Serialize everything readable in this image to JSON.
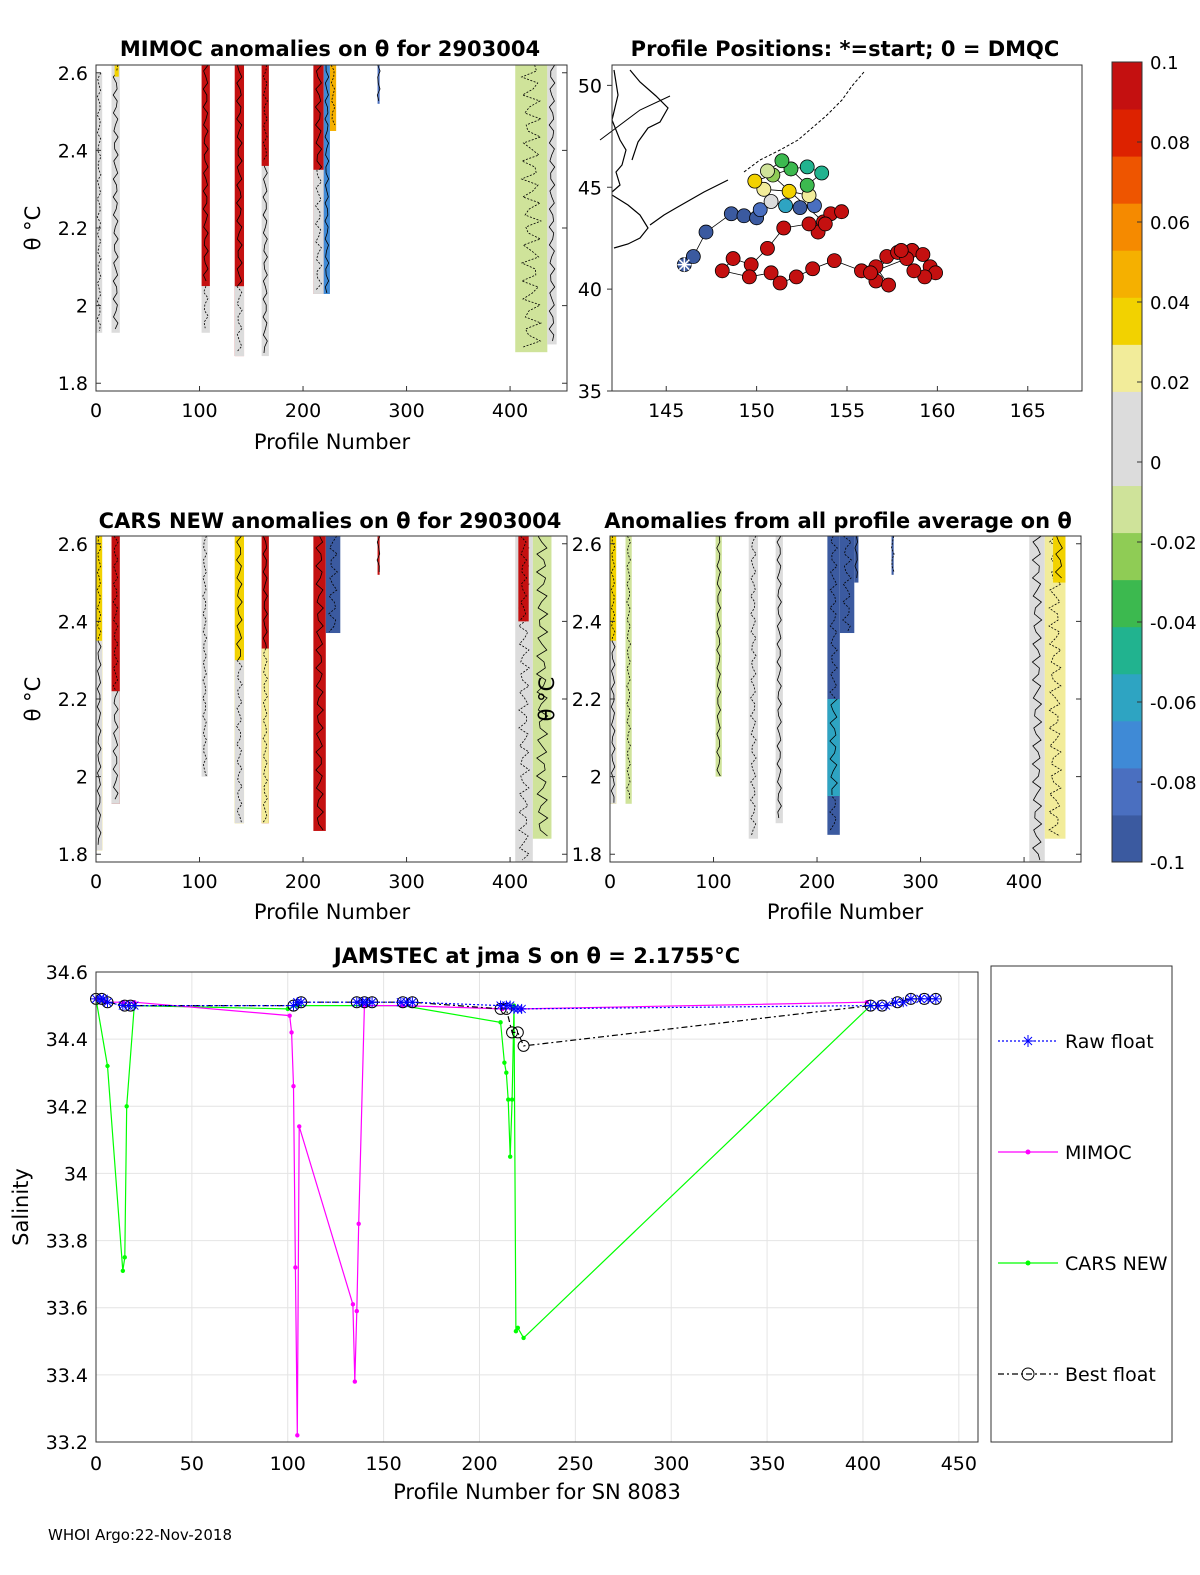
{
  "footer": "WHOI Argo:22-Nov-2018",
  "colorbar": {
    "min": -0.1,
    "max": 0.1,
    "tick_values": [
      0.1,
      0.08,
      0.06,
      0.04,
      0.02,
      0,
      -0.02,
      -0.04,
      -0.06,
      -0.08,
      -0.1
    ],
    "tick_labels": [
      "0.1",
      "0.08",
      "0.06",
      "0.04",
      "0.02",
      "0",
      "-0.02",
      "-0.04",
      "-0.06",
      "-0.08",
      "-0.1"
    ],
    "colors": [
      "#3b5aa0",
      "#4a6fc0",
      "#3f8ad6",
      "#2ea4c2",
      "#21b38f",
      "#3cb94f",
      "#8fcc55",
      "#cfe39a",
      "#dcdcdc",
      "#dcdcdc",
      "#f2ec9a",
      "#f2d200",
      "#f5b000",
      "#f58a00",
      "#ee5500",
      "#dd2200",
      "#c41010"
    ]
  },
  "chart_data": [
    {
      "id": "mimoc",
      "type": "heatmap",
      "title": "MIMOC anomalies on θ  for 2903004",
      "xlabel": "Profile Number",
      "ylabel": "θ °C",
      "xlim": [
        0,
        455
      ],
      "ylim": [
        1.78,
        2.62
      ],
      "xticks": [
        0,
        100,
        200,
        300,
        400
      ],
      "yticks": [
        1.8,
        2,
        2.2,
        2.4,
        2.6
      ],
      "ytick_labels": [
        "1.8",
        "2",
        "2.2",
        "2.4",
        "2.6"
      ],
      "columns": [
        {
          "x0": 0,
          "x1": 6,
          "y0": 1.93,
          "y1": 2.6,
          "v": 0.01
        },
        {
          "x0": 15,
          "x1": 23,
          "y0": 1.93,
          "y1": 2.62,
          "v": 0.01
        },
        {
          "x0": 18,
          "x1": 22,
          "y0": 2.59,
          "y1": 2.62,
          "v": 0.04
        },
        {
          "x0": 102,
          "x1": 110,
          "y0": 2.05,
          "y1": 2.62,
          "v": 0.1
        },
        {
          "x0": 102,
          "x1": 110,
          "y0": 1.93,
          "y1": 2.05,
          "v": 0.0
        },
        {
          "x0": 134,
          "x1": 143,
          "y0": 1.87,
          "y1": 2.62,
          "v": 0.1
        },
        {
          "x0": 134,
          "x1": 143,
          "y0": 1.87,
          "y1": 2.05,
          "v": 0.0
        },
        {
          "x0": 160,
          "x1": 167,
          "y0": 1.87,
          "y1": 2.62,
          "v": 0.0
        },
        {
          "x0": 160,
          "x1": 167,
          "y0": 2.36,
          "y1": 2.62,
          "v": 0.1
        },
        {
          "x0": 210,
          "x1": 220,
          "y0": 2.03,
          "y1": 2.62,
          "v": 0.1
        },
        {
          "x0": 210,
          "x1": 220,
          "y0": 2.03,
          "y1": 2.35,
          "v": 0.0
        },
        {
          "x0": 220,
          "x1": 226,
          "y0": 2.03,
          "y1": 2.62,
          "v": -0.07
        },
        {
          "x0": 226,
          "x1": 232,
          "y0": 2.45,
          "y1": 2.62,
          "v": 0.05
        },
        {
          "x0": 272,
          "x1": 274,
          "y0": 2.52,
          "y1": 2.62,
          "v": -0.08
        },
        {
          "x0": 405,
          "x1": 436,
          "y0": 1.88,
          "y1": 2.62,
          "v": -0.015
        },
        {
          "x0": 436,
          "x1": 445,
          "y0": 1.9,
          "y1": 2.62,
          "v": 0.0
        }
      ]
    },
    {
      "id": "map",
      "type": "scatter",
      "title": "Profile Positions: *=start; 0 = DMQC",
      "xlim": [
        142,
        168
      ],
      "ylim": [
        35,
        51
      ],
      "xticks": [
        145,
        150,
        155,
        160,
        165
      ],
      "yticks": [
        35,
        40,
        45,
        50
      ],
      "start": [
        146.0,
        41.2
      ],
      "points": [
        [
          146.0,
          41.2,
          -0.09
        ],
        [
          146.5,
          41.6,
          -0.09
        ],
        [
          147.2,
          42.8,
          -0.1
        ],
        [
          148.6,
          43.7,
          -0.1
        ],
        [
          149.3,
          43.6,
          -0.1
        ],
        [
          150.0,
          43.5,
          -0.1
        ],
        [
          150.2,
          43.9,
          -0.08
        ],
        [
          150.8,
          44.3,
          0.0
        ],
        [
          151.6,
          44.1,
          -0.06
        ],
        [
          152.4,
          44.0,
          -0.1
        ],
        [
          153.2,
          44.1,
          -0.08
        ],
        [
          152.9,
          44.6,
          0.02
        ],
        [
          151.8,
          44.8,
          0.03
        ],
        [
          150.4,
          44.9,
          0.02
        ],
        [
          149.9,
          45.3,
          0.03
        ],
        [
          150.9,
          45.6,
          -0.02
        ],
        [
          151.9,
          45.9,
          -0.03
        ],
        [
          152.8,
          46.0,
          -0.05
        ],
        [
          153.6,
          45.7,
          -0.05
        ],
        [
          152.8,
          45.1,
          -0.04
        ],
        [
          151.4,
          46.3,
          -0.03
        ],
        [
          150.6,
          45.8,
          -0.01
        ],
        [
          153.7,
          43.3,
          0.1
        ],
        [
          154.1,
          43.7,
          0.1
        ],
        [
          153.4,
          42.8,
          0.1
        ],
        [
          154.7,
          43.8,
          0.1
        ],
        [
          153.8,
          43.2,
          0.1
        ],
        [
          152.9,
          43.2,
          0.1
        ],
        [
          151.5,
          43.0,
          0.1
        ],
        [
          150.6,
          42.0,
          0.1
        ],
        [
          149.7,
          41.2,
          0.1
        ],
        [
          148.7,
          41.5,
          0.1
        ],
        [
          148.1,
          40.9,
          0.1
        ],
        [
          149.6,
          40.6,
          0.1
        ],
        [
          150.8,
          40.8,
          0.1
        ],
        [
          151.3,
          40.3,
          0.1
        ],
        [
          152.2,
          40.6,
          0.1
        ],
        [
          153.1,
          41.0,
          0.1
        ],
        [
          154.3,
          41.4,
          0.1
        ],
        [
          155.8,
          40.9,
          0.1
        ],
        [
          156.6,
          40.4,
          0.1
        ],
        [
          157.3,
          40.2,
          0.1
        ],
        [
          156.6,
          41.1,
          0.1
        ],
        [
          157.2,
          41.6,
          0.1
        ],
        [
          157.8,
          41.8,
          0.1
        ],
        [
          158.6,
          41.9,
          0.1
        ],
        [
          159.2,
          41.7,
          0.1
        ],
        [
          159.6,
          41.1,
          0.1
        ],
        [
          159.9,
          40.8,
          0.1
        ],
        [
          159.3,
          40.6,
          0.1
        ],
        [
          158.7,
          40.9,
          0.1
        ],
        [
          158.3,
          41.5,
          0.1
        ],
        [
          156.3,
          40.8,
          0.1
        ],
        [
          158.0,
          41.9,
          0.1
        ]
      ]
    },
    {
      "id": "cars",
      "type": "heatmap",
      "title": "CARS NEW anomalies on θ for 2903004",
      "xlabel": "Profile Number",
      "ylabel": "θ °C",
      "xlim": [
        0,
        455
      ],
      "ylim": [
        1.78,
        2.62
      ],
      "xticks": [
        0,
        100,
        200,
        300,
        400
      ],
      "yticks": [
        1.8,
        2,
        2.2,
        2.4,
        2.6
      ],
      "ytick_labels": [
        "1.8",
        "2",
        "2.2",
        "2.4",
        "2.6"
      ],
      "columns": [
        {
          "x0": 0,
          "x1": 6,
          "y0": 1.81,
          "y1": 2.62,
          "v": 0.035
        },
        {
          "x0": 0,
          "x1": 6,
          "y0": 1.81,
          "y1": 2.35,
          "v": 0.0
        },
        {
          "x0": 15,
          "x1": 23,
          "y0": 1.93,
          "y1": 2.62,
          "v": 0.1
        },
        {
          "x0": 15,
          "x1": 23,
          "y0": 1.93,
          "y1": 2.22,
          "v": 0.0
        },
        {
          "x0": 102,
          "x1": 108,
          "y0": 2.0,
          "y1": 2.62,
          "v": 0.0
        },
        {
          "x0": 134,
          "x1": 143,
          "y0": 1.88,
          "y1": 2.62,
          "v": 0.03
        },
        {
          "x0": 134,
          "x1": 143,
          "y0": 1.88,
          "y1": 2.3,
          "v": 0.0
        },
        {
          "x0": 160,
          "x1": 167,
          "y0": 1.88,
          "y1": 2.62,
          "v": 0.1
        },
        {
          "x0": 160,
          "x1": 167,
          "y0": 1.88,
          "y1": 2.33,
          "v": 0.025
        },
        {
          "x0": 210,
          "x1": 222,
          "y0": 1.86,
          "y1": 2.62,
          "v": 0.1
        },
        {
          "x0": 222,
          "x1": 236,
          "y0": 2.37,
          "y1": 2.62,
          "v": -0.1
        },
        {
          "x0": 272,
          "x1": 274,
          "y0": 2.52,
          "y1": 2.62,
          "v": 0.1
        },
        {
          "x0": 405,
          "x1": 422,
          "y0": 1.78,
          "y1": 2.62,
          "v": 0.0
        },
        {
          "x0": 422,
          "x1": 440,
          "y0": 1.84,
          "y1": 2.62,
          "v": -0.01
        },
        {
          "x0": 408,
          "x1": 418,
          "y0": 2.4,
          "y1": 2.62,
          "v": 0.1
        }
      ]
    },
    {
      "id": "allavg",
      "type": "heatmap",
      "title": "Anomalies from all profile average on θ",
      "xlabel": "Profile Number",
      "ylabel": "θ °C",
      "xlim": [
        0,
        455
      ],
      "ylim": [
        1.78,
        2.62
      ],
      "xticks": [
        0,
        100,
        200,
        300,
        400
      ],
      "yticks": [
        1.8,
        2,
        2.2,
        2.4,
        2.6
      ],
      "ytick_labels": [
        "1.8",
        "2",
        "2.2",
        "2.4",
        "2.6"
      ],
      "columns": [
        {
          "x0": 0,
          "x1": 6,
          "y0": 1.93,
          "y1": 2.62,
          "v": 0.035
        },
        {
          "x0": 0,
          "x1": 6,
          "y0": 1.93,
          "y1": 2.35,
          "v": 0.0
        },
        {
          "x0": 15,
          "x1": 21,
          "y0": 1.93,
          "y1": 2.62,
          "v": -0.01
        },
        {
          "x0": 102,
          "x1": 108,
          "y0": 2.0,
          "y1": 2.62,
          "v": -0.015
        },
        {
          "x0": 134,
          "x1": 143,
          "y0": 1.84,
          "y1": 2.62,
          "v": 0.0
        },
        {
          "x0": 160,
          "x1": 167,
          "y0": 1.88,
          "y1": 2.62,
          "v": 0.0
        },
        {
          "x0": 210,
          "x1": 222,
          "y0": 1.85,
          "y1": 2.62,
          "v": -0.1
        },
        {
          "x0": 210,
          "x1": 222,
          "y0": 1.95,
          "y1": 2.2,
          "v": -0.06
        },
        {
          "x0": 222,
          "x1": 236,
          "y0": 2.37,
          "y1": 2.62,
          "v": -0.1
        },
        {
          "x0": 236,
          "x1": 240,
          "y0": 2.5,
          "y1": 2.62,
          "v": -0.09
        },
        {
          "x0": 272,
          "x1": 274,
          "y0": 2.52,
          "y1": 2.62,
          "v": -0.1
        },
        {
          "x0": 405,
          "x1": 420,
          "y0": 1.78,
          "y1": 2.62,
          "v": 0.0
        },
        {
          "x0": 420,
          "x1": 440,
          "y0": 1.84,
          "y1": 2.62,
          "v": 0.025
        },
        {
          "x0": 428,
          "x1": 440,
          "y0": 2.5,
          "y1": 2.62,
          "v": 0.04
        }
      ]
    },
    {
      "id": "jamstec",
      "type": "line",
      "title": "JAMSTEC at jma S on θ = 2.1755°C",
      "xlabel": "Profile Number for SN 8083",
      "ylabel": "Salinity",
      "xlim": [
        0,
        460
      ],
      "ylim": [
        33.2,
        34.6
      ],
      "xticks": [
        0,
        50,
        100,
        150,
        200,
        250,
        300,
        350,
        400,
        450
      ],
      "yticks": [
        33.2,
        33.4,
        33.6,
        33.8,
        34,
        34.2,
        34.4,
        34.6
      ],
      "ytick_labels": [
        "33.2",
        "33.4",
        "33.6",
        "33.8",
        "34",
        "34.2",
        "34.4",
        "34.6"
      ],
      "series": [
        {
          "name": "Raw float",
          "color": "#0000ff",
          "marker": "asterisk",
          "dash": "2,2",
          "x": [
            0,
            2,
            4,
            6,
            14,
            17,
            20,
            103,
            105,
            107,
            136,
            139,
            141,
            144,
            159,
            162,
            165,
            211,
            214,
            216,
            218,
            220,
            222,
            404,
            408,
            412,
            417,
            421,
            425,
            430,
            434,
            438
          ],
          "y": [
            34.52,
            34.52,
            34.52,
            34.51,
            34.5,
            34.5,
            34.5,
            34.5,
            34.51,
            34.51,
            34.51,
            34.51,
            34.51,
            34.51,
            34.51,
            34.51,
            34.51,
            34.5,
            34.5,
            34.5,
            34.49,
            34.49,
            34.49,
            34.5,
            34.5,
            34.5,
            34.51,
            34.51,
            34.52,
            34.52,
            34.52,
            34.52
          ]
        },
        {
          "name": "MIMOC",
          "color": "#ff00ff",
          "marker": "dot",
          "dash": "",
          "x": [
            0,
            5,
            14,
            20,
            101,
            102,
            103,
            104,
            105,
            106,
            134,
            135,
            136,
            137,
            140,
            160,
            212,
            222,
            402
          ],
          "y": [
            34.52,
            34.51,
            34.51,
            34.51,
            34.47,
            34.42,
            34.26,
            33.72,
            33.22,
            34.14,
            33.61,
            33.38,
            33.59,
            33.85,
            34.5,
            34.5,
            34.49,
            34.49,
            34.51
          ]
        },
        {
          "name": "CARS NEW",
          "color": "#00ff00",
          "marker": "dot",
          "dash": "",
          "x": [
            0,
            6,
            14,
            15,
            16,
            20,
            100,
            105,
            140,
            160,
            211,
            213,
            214,
            215,
            216,
            217,
            218,
            219,
            220,
            223,
            404
          ],
          "y": [
            34.52,
            34.32,
            33.71,
            33.75,
            34.2,
            34.5,
            34.49,
            34.5,
            34.5,
            34.5,
            34.45,
            34.33,
            34.3,
            34.22,
            34.05,
            34.22,
            34.5,
            33.53,
            33.54,
            33.51,
            34.5
          ]
        },
        {
          "name": "Best float",
          "color": "#000000",
          "marker": "circle",
          "dash": "6,3,2,3",
          "x": [
            0,
            3,
            6,
            15,
            18,
            103,
            107,
            136,
            140,
            144,
            160,
            165,
            211,
            214,
            217,
            220,
            223,
            404,
            410,
            418,
            425,
            432,
            438
          ],
          "y": [
            34.52,
            34.52,
            34.51,
            34.5,
            34.5,
            34.5,
            34.51,
            34.51,
            34.51,
            34.51,
            34.51,
            34.51,
            34.49,
            34.49,
            34.42,
            34.42,
            34.38,
            34.5,
            34.5,
            34.51,
            34.52,
            34.52,
            34.52
          ]
        }
      ]
    }
  ]
}
